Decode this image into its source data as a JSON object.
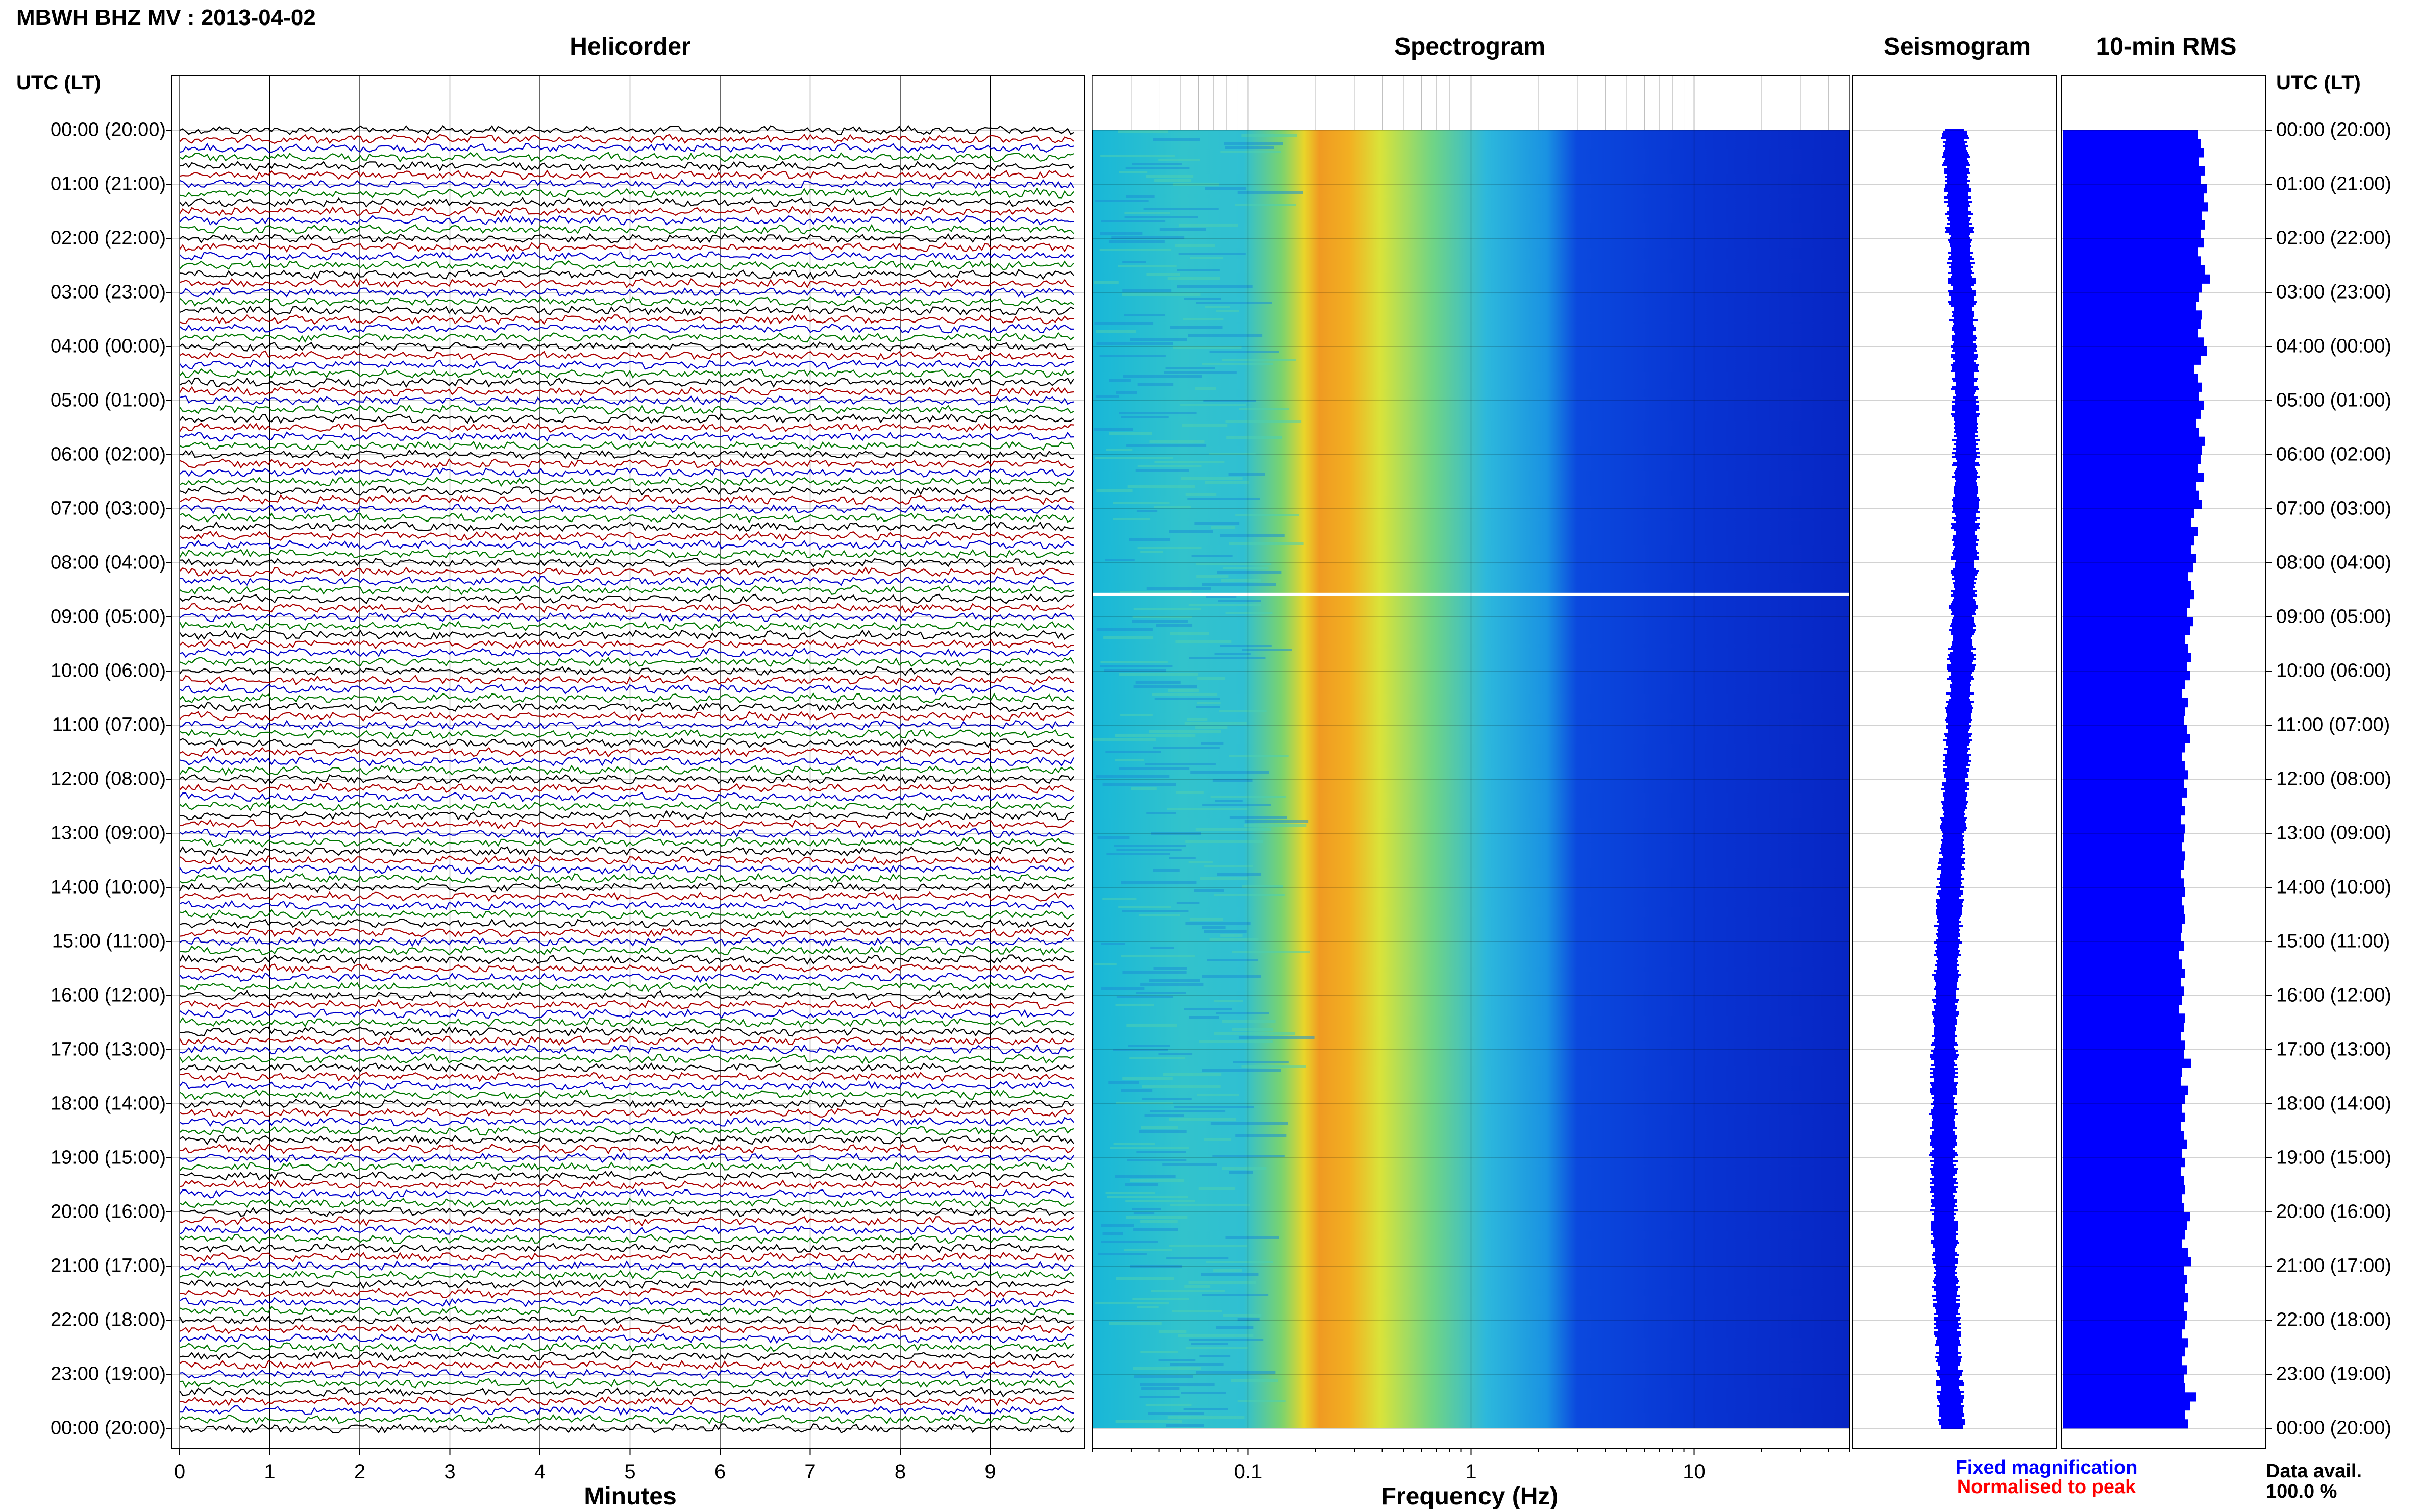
{
  "title": "MBWH BHZ MV : 2013-04-02",
  "utc_header": "UTC (LT)",
  "panels": {
    "helicorder": "Helicorder",
    "spectrogram": "Spectrogram",
    "seismogram": "Seismogram",
    "rms": "10-min RMS"
  },
  "axes": {
    "helicorder_xlabel": "Minutes",
    "spectrogram_xlabel": "Frequency (Hz)"
  },
  "legend": {
    "fixed": "Fixed magnification",
    "normalised": "Normalised to peak",
    "fixed_color": "#0000ff",
    "normalised_color": "#ff0000"
  },
  "data_avail": {
    "label": "Data avail.",
    "value": "100.0 %"
  },
  "colors": {
    "trace_colors": [
      "#000000",
      "#aa0000",
      "#0000cc",
      "#007700"
    ],
    "rms_bar": "#0000ff",
    "seismogram": "#0000ff"
  },
  "chart_data": [
    {
      "type": "line",
      "name": "helicorder",
      "title": "Helicorder",
      "xlabel": "Minutes",
      "x_ticks": [
        "0",
        "1",
        "2",
        "3",
        "4",
        "5",
        "6",
        "7",
        "8",
        "9"
      ],
      "xlim": [
        0,
        10
      ],
      "rows": [
        "00:00 (20:00)",
        "01:00 (21:00)",
        "02:00 (22:00)",
        "03:00 (23:00)",
        "04:00 (00:00)",
        "05:00 (01:00)",
        "06:00 (02:00)",
        "07:00 (03:00)",
        "08:00 (04:00)",
        "09:00 (05:00)",
        "10:00 (06:00)",
        "11:00 (07:00)",
        "12:00 (08:00)",
        "13:00 (09:00)",
        "14:00 (10:00)",
        "15:00 (11:00)",
        "16:00 (12:00)",
        "17:00 (13:00)",
        "18:00 (14:00)",
        "19:00 (15:00)",
        "20:00 (16:00)",
        "21:00 (17:00)",
        "22:00 (18:00)",
        "23:00 (19:00)",
        "00:00 (20:00)"
      ],
      "traces_per_hour": 6,
      "trace_minutes": 10
    },
    {
      "type": "heatmap",
      "name": "spectrogram",
      "title": "Spectrogram",
      "xlabel": "Frequency (Hz)",
      "x_scale": "log",
      "x_ticks": [
        "0.1",
        "1",
        "10"
      ],
      "xlim": [
        0.02,
        50
      ],
      "peak_band_hz": [
        0.2,
        0.4
      ],
      "gap_at_utc": "08:35"
    },
    {
      "type": "line",
      "name": "seismogram",
      "title": "Seismogram"
    },
    {
      "type": "bar",
      "name": "rms",
      "title": "10-min RMS",
      "values": [
        0.88,
        0.9,
        0.92,
        0.89,
        0.93,
        0.9,
        0.94,
        0.92,
        0.95,
        0.91,
        0.93,
        0.9,
        0.92,
        0.88,
        0.9,
        0.93,
        0.96,
        0.91,
        0.89,
        0.87,
        0.91,
        0.9,
        0.88,
        0.92,
        0.94,
        0.9,
        0.86,
        0.88,
        0.91,
        0.89,
        0.92,
        0.9,
        0.87,
        0.89,
        0.93,
        0.91,
        0.9,
        0.88,
        0.92,
        0.87,
        0.89,
        0.91,
        0.86,
        0.84,
        0.88,
        0.86,
        0.84,
        0.87,
        0.85,
        0.82,
        0.84,
        0.86,
        0.83,
        0.81,
        0.85,
        0.83,
        0.8,
        0.82,
        0.84,
        0.81,
        0.83,
        0.8,
        0.78,
        0.82,
        0.8,
        0.79,
        0.81,
        0.83,
        0.8,
        0.78,
        0.8,
        0.82,
        0.79,
        0.81,
        0.78,
        0.8,
        0.77,
        0.8,
        0.79,
        0.78,
        0.8,
        0.79,
        0.77,
        0.79,
        0.8,
        0.78,
        0.79,
        0.8,
        0.78,
        0.77,
        0.79,
        0.76,
        0.78,
        0.8,
        0.77,
        0.79,
        0.78,
        0.76,
        0.8,
        0.79,
        0.77,
        0.8,
        0.79,
        0.84,
        0.78,
        0.77,
        0.82,
        0.8,
        0.78,
        0.8,
        0.77,
        0.79,
        0.81,
        0.78,
        0.8,
        0.77,
        0.79,
        0.8,
        0.78,
        0.79,
        0.83,
        0.81,
        0.8,
        0.78,
        0.82,
        0.84,
        0.79,
        0.81,
        0.8,
        0.82,
        0.79,
        0.81,
        0.8,
        0.78,
        0.82,
        0.8,
        0.78,
        0.81,
        0.79,
        0.8,
        0.87,
        0.83,
        0.8,
        0.82
      ]
    }
  ]
}
